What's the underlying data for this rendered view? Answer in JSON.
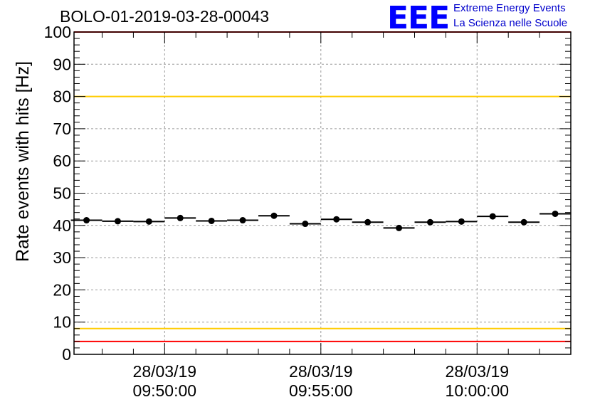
{
  "title": "BOLO-01-2019-03-28-00043",
  "logo": {
    "mark": "EEE",
    "line1": "Extreme Energy Events",
    "line2": "La Scienza nelle Scuole"
  },
  "chart_data": {
    "type": "scatter",
    "title": "BOLO-01-2019-03-28-00043",
    "xlabel": "",
    "ylabel": "Rate events with hits [Hz]",
    "ylim": [
      0,
      100
    ],
    "yticks": [
      0,
      10,
      20,
      30,
      40,
      50,
      60,
      70,
      80,
      90,
      100
    ],
    "grid": true,
    "x_tick_labels": [
      {
        "date": "28/03/19",
        "time": "09:50:00"
      },
      {
        "date": "28/03/19",
        "time": "09:55:00"
      },
      {
        "date": "28/03/19",
        "time": "10:00:00"
      }
    ],
    "time_axis_minutes_from_0950": {
      "min": -2.9,
      "max": 13.0
    },
    "bin_width_minutes": 1.0,
    "points_x_minutes_from_0950": [
      -2.5,
      -1.5,
      -0.5,
      0.5,
      1.5,
      2.5,
      3.5,
      4.5,
      5.5,
      6.5,
      7.5,
      8.5,
      9.5,
      10.5,
      11.5,
      12.5
    ],
    "values": [
      41.6,
      41.3,
      41.2,
      42.3,
      41.4,
      41.6,
      43.0,
      40.5,
      41.9,
      41.0,
      39.2,
      41.0,
      41.2,
      42.8,
      41.0,
      43.6
    ],
    "reference_lines": [
      {
        "value": 100,
        "color": "#ff0000"
      },
      {
        "value": 80,
        "color": "#ffcc00"
      },
      {
        "value": 8,
        "color": "#ffcc00"
      },
      {
        "value": 4,
        "color": "#ff0000"
      }
    ]
  }
}
